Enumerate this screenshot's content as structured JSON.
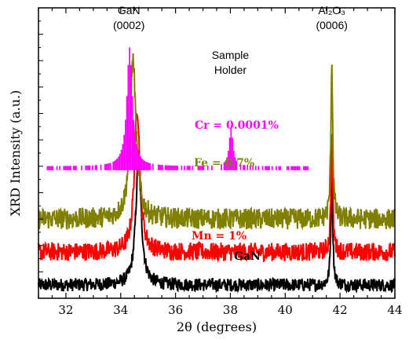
{
  "chart_data": {
    "type": "line",
    "xlabel": "2θ (degrees)",
    "ylabel": "XRD Intensity (a.u.)",
    "xlim": [
      31,
      44
    ],
    "x_ticks": [
      "32",
      "34",
      "36",
      "38",
      "40",
      "42",
      "44"
    ],
    "grid": false,
    "annotations": [
      {
        "lines": [
          "GaN",
          "(0002)"
        ],
        "x": 34.3
      },
      {
        "lines": [
          "Sample",
          "Holder"
        ],
        "x": 38.0
      },
      {
        "lines": [
          "Al₂O₃",
          "(0006)"
        ],
        "x": 41.7
      }
    ],
    "series": [
      {
        "name": "GaN",
        "color": "#000000",
        "baseline": 0.1,
        "noise": 0.05,
        "peaks": [
          {
            "x": 34.65,
            "h": 0.95,
            "w": 0.12
          },
          {
            "x": 41.7,
            "h": 0.85,
            "w": 0.04
          }
        ]
      },
      {
        "name": "Mn = 1%",
        "color": "#ff0000",
        "baseline": 0.35,
        "noise": 0.07,
        "peaks": [
          {
            "x": 34.6,
            "h": 1.1,
            "w": 0.12
          },
          {
            "x": 41.7,
            "h": 0.85,
            "w": 0.04
          }
        ]
      },
      {
        "name": "Fe = 0.7%",
        "color": "#808000",
        "baseline": 0.6,
        "noise": 0.08,
        "peaks": [
          {
            "x": 34.45,
            "h": 1.2,
            "w": 0.13
          },
          {
            "x": 41.7,
            "h": 1.2,
            "w": 0.04
          }
        ]
      },
      {
        "name": "Cr = 0.0001%",
        "color": "#ff00ff",
        "baseline": 1.0,
        "noise": 0.0,
        "peaks": [
          {
            "x": 34.3,
            "h": 0.9,
            "w": 0.12
          },
          {
            "x": 38.0,
            "h": 0.3,
            "w": 0.08
          }
        ]
      }
    ],
    "legend_placement": "inline labels"
  }
}
